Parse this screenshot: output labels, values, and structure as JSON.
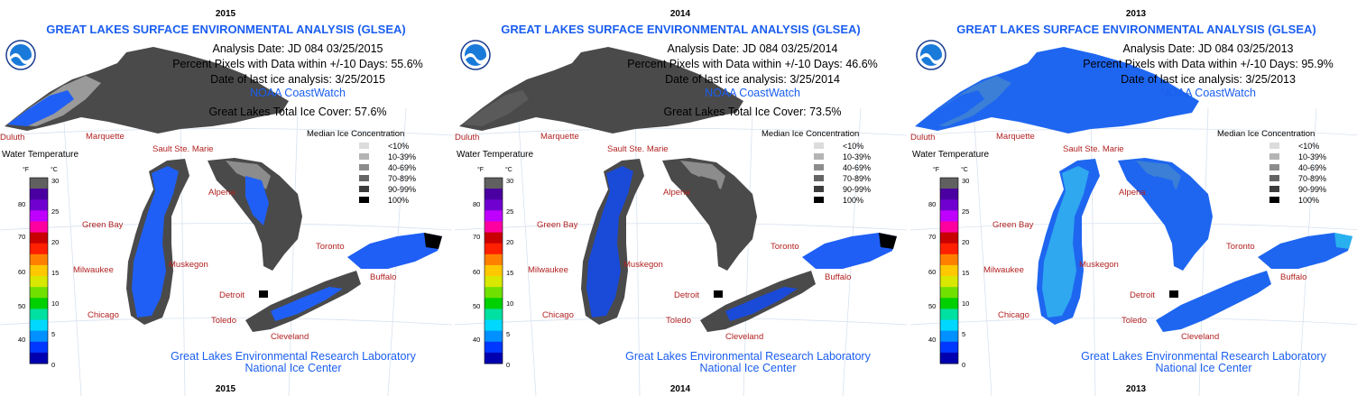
{
  "panels": [
    {
      "year": "2015",
      "title": "GREAT LAKES SURFACE ENVIRONMENTAL ANALYSIS (GLSEA)",
      "analysis_date": "Analysis Date:  JD 084 03/25/2015",
      "percent_pixels": "Percent Pixels with Data within +/-10 Days:  55.6%",
      "last_ice": "Date of last ice analysis:  3/25/2015",
      "source": "NOAA CoastWatch",
      "total_ice": "Great Lakes Total Ice Cover:  57.6%",
      "water_color": "#1f5ff5"
    },
    {
      "year": "2014",
      "title": "GREAT LAKES SURFACE ENVIRONMENTAL ANALYSIS (GLSEA)",
      "analysis_date": "Analysis Date:  JD 084 03/25/2014",
      "percent_pixels": "Percent Pixels with Data within +/-10 Days:  46.6%",
      "last_ice": "Date of last ice analysis:  3/25/2014",
      "source": "NOAA CoastWatch",
      "total_ice": "Great Lakes Total Ice Cover:  73.5%",
      "water_color": "#1a4ad8"
    },
    {
      "year": "2013",
      "title": "GREAT LAKES SURFACE ENVIRONMENTAL ANALYSIS (GLSEA)",
      "analysis_date": "Analysis Date:  JD 084 03/25/2013",
      "percent_pixels": "Percent Pixels with Data within +/-10 Days:  95.9%",
      "last_ice": "Date of last ice analysis:  3/25/2013",
      "source": "NOAA CoastWatch",
      "total_ice": "",
      "water_color": "#1e66f0"
    }
  ],
  "ice_legend": {
    "title": "Median Ice Concentration",
    "items": [
      {
        "label": "<10%",
        "color": "#dcdcdc"
      },
      {
        "label": "10-39%",
        "color": "#b4b4b4"
      },
      {
        "label": "40-69%",
        "color": "#8c8c8c"
      },
      {
        "label": "70-89%",
        "color": "#646464"
      },
      {
        "label": "90-99%",
        "color": "#3c3c3c"
      },
      {
        "label": "100%",
        "color": "#000000"
      }
    ]
  },
  "temp_scale": {
    "title": "Water Temperature",
    "unit_f": "°F",
    "unit_c": "°C",
    "fahrenheit_ticks": [
      "80",
      "70",
      "60",
      "50",
      "40"
    ],
    "celsius_ticks": [
      "30",
      "25",
      "20",
      "15",
      "10",
      "5",
      "0"
    ],
    "colors": [
      "#0000b0",
      "#0038ff",
      "#0090ff",
      "#00d8ff",
      "#00e0a0",
      "#00d000",
      "#70e000",
      "#d8e800",
      "#ffc800",
      "#ff8000",
      "#ff2000",
      "#c80000",
      "#ff00a0",
      "#c000ff",
      "#7000d0",
      "#4a00a0",
      "#606060"
    ]
  },
  "cities": {
    "duluth": "Duluth",
    "marquette": "Marquette",
    "sault": "Sault Ste. Marie",
    "green_bay": "Green Bay",
    "alpena": "Alpena",
    "toronto": "Toronto",
    "milwaukee": "Milwaukee",
    "muskegon": "Muskegon",
    "buffalo": "Buffalo",
    "detroit": "Detroit",
    "chicago": "Chicago",
    "toledo": "Toledo",
    "cleveland": "Cleveland"
  },
  "footer": {
    "line1": "Great Lakes Environmental Research Laboratory",
    "line2": "National Ice Center"
  }
}
